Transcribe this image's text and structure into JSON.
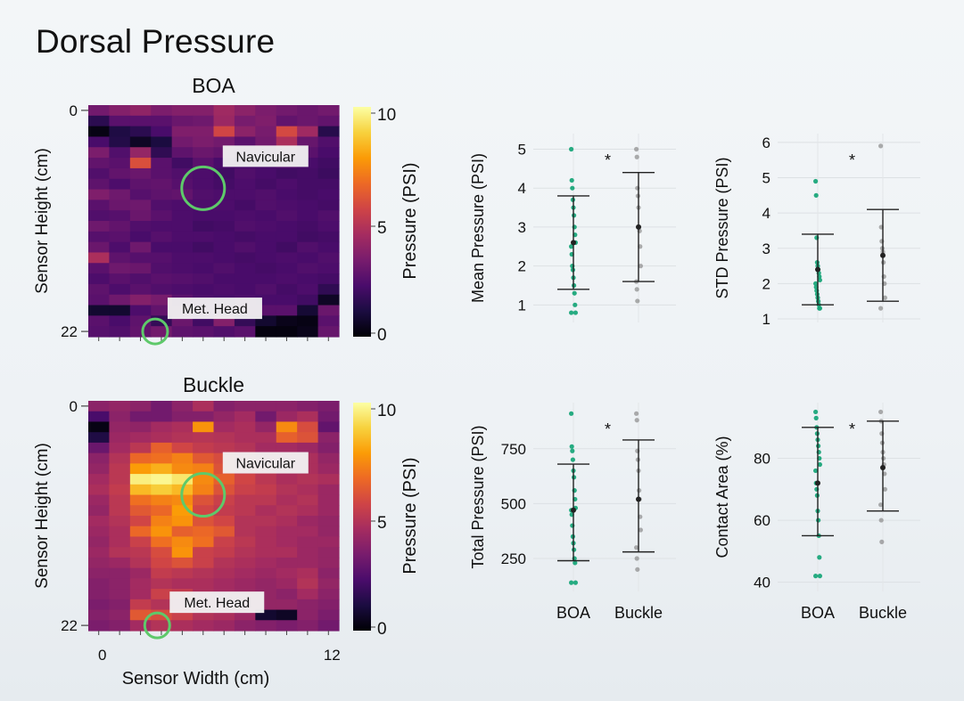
{
  "slide_title": "Dorsal Pressure",
  "colormap": [
    "#000004",
    "#1b0c41",
    "#4a0c6b",
    "#781c6d",
    "#a52c60",
    "#cf4446",
    "#ed6925",
    "#fb9b06",
    "#f7d13d",
    "#fcffa4"
  ],
  "accent_green": "#1aa77a",
  "annotation_circle_color": "#5ec96a",
  "chart_data": [
    {
      "type": "heatmap",
      "title": "BOA",
      "ylabel": "Sensor Height (cm)",
      "xlabel": "",
      "y_ticks": [
        "0",
        "22"
      ],
      "x_ticks": [],
      "colorbar": {
        "label": "Pressure (PSI)",
        "ticks": [
          "10",
          "5",
          "0"
        ],
        "range": [
          0,
          10
        ]
      },
      "annotations": [
        {
          "label": "Navicular",
          "cx": 5,
          "cy": 7.9
        },
        {
          "label": "Met. Head",
          "cx": 2.7,
          "cy": 21.5
        }
      ],
      "values": [
        [
          3.2,
          3.6,
          3.9,
          3.4,
          3.6,
          3.6,
          4.3,
          3.8,
          3.4,
          3.2,
          3.0,
          3.2
        ],
        [
          1.5,
          2.6,
          2.6,
          2.6,
          3.0,
          3.1,
          4.2,
          3.3,
          3.5,
          2.8,
          3.0,
          2.8
        ],
        [
          0.3,
          1.2,
          1.5,
          2.2,
          3.5,
          3.5,
          5.6,
          3.8,
          3.3,
          5.7,
          4.3,
          1.4
        ],
        [
          2.2,
          1.3,
          0.6,
          1.1,
          3.2,
          3.4,
          3.2,
          2.6,
          3.2,
          4.6,
          2.9,
          2.4
        ],
        [
          3.4,
          2.4,
          4.0,
          1.6,
          2.7,
          3.0,
          2.8,
          2.4,
          2.4,
          2.9,
          2.6,
          2.2
        ],
        [
          2.8,
          2.6,
          5.9,
          2.6,
          2.0,
          2.6,
          2.2,
          2.2,
          2.2,
          2.4,
          2.2,
          2.0
        ],
        [
          2.4,
          2.8,
          3.0,
          2.6,
          2.4,
          2.3,
          2.0,
          2.4,
          2.2,
          2.0,
          2.1,
          1.9
        ],
        [
          2.7,
          2.3,
          2.7,
          2.8,
          2.5,
          2.3,
          2.1,
          2.3,
          2.1,
          2.3,
          2.1,
          2.1
        ],
        [
          3.5,
          3.1,
          2.5,
          2.7,
          2.8,
          2.4,
          2.3,
          2.3,
          2.4,
          2.2,
          2.1,
          2.2
        ],
        [
          2.6,
          3.0,
          3.1,
          2.4,
          2.3,
          2.3,
          2.3,
          2.1,
          2.4,
          2.3,
          2.2,
          2.1
        ],
        [
          2.4,
          2.5,
          3.0,
          2.6,
          2.3,
          2.2,
          2.2,
          2.3,
          2.2,
          2.4,
          2.2,
          2.4
        ],
        [
          3.1,
          2.8,
          2.4,
          2.3,
          2.3,
          2.0,
          2.1,
          2.4,
          2.3,
          2.2,
          2.1,
          2.3
        ],
        [
          2.5,
          2.6,
          2.2,
          2.5,
          2.3,
          2.3,
          2.2,
          2.1,
          2.2,
          2.2,
          2.0,
          2.1
        ],
        [
          3.0,
          2.3,
          3.1,
          2.2,
          2.2,
          2.0,
          2.2,
          2.4,
          2.2,
          2.0,
          2.4,
          2.2
        ],
        [
          4.6,
          2.7,
          2.5,
          2.5,
          2.3,
          2.3,
          2.2,
          2.1,
          2.2,
          2.3,
          2.2,
          2.4
        ],
        [
          2.6,
          3.1,
          3.0,
          2.4,
          2.3,
          2.2,
          2.4,
          2.2,
          2.1,
          2.2,
          2.4,
          2.3
        ],
        [
          2.3,
          2.6,
          2.4,
          2.6,
          2.5,
          2.4,
          2.2,
          2.2,
          2.2,
          2.3,
          2.2,
          2.1
        ],
        [
          2.7,
          2.3,
          2.6,
          2.4,
          2.3,
          2.2,
          2.3,
          2.2,
          2.4,
          2.1,
          2.3,
          1.6
        ],
        [
          2.6,
          3.1,
          3.6,
          3.3,
          2.6,
          2.3,
          2.2,
          2.3,
          2.2,
          2.2,
          2.0,
          0.6
        ],
        [
          0.8,
          0.8,
          2.3,
          2.8,
          2.8,
          2.5,
          2.5,
          2.4,
          2.6,
          2.6,
          0.9,
          3.0
        ],
        [
          2.6,
          2.2,
          2.7,
          1.7,
          3.0,
          2.0,
          3.6,
          1.7,
          0.8,
          0.4,
          0.3,
          2.6
        ],
        [
          2.5,
          2.4,
          2.8,
          3.2,
          2.7,
          2.6,
          2.4,
          2.6,
          0.2,
          0.2,
          0.4,
          2.9
        ]
      ]
    },
    {
      "type": "heatmap",
      "title": "Buckle",
      "ylabel": "Sensor Height (cm)",
      "xlabel": "Sensor Width (cm)",
      "y_ticks": [
        "0",
        "22"
      ],
      "x_ticks": [
        "0",
        "12"
      ],
      "colorbar": {
        "label": "Pressure (PSI)",
        "ticks": [
          "10",
          "5",
          "0"
        ],
        "range": [
          0,
          10
        ]
      },
      "annotations": [
        {
          "label": "Navicular",
          "cx": 5,
          "cy": 9.0
        },
        {
          "label": "Met. Head",
          "cx": 2.8,
          "cy": 21.5
        }
      ],
      "values": [
        [
          3.8,
          4.0,
          3.8,
          3.2,
          3.8,
          4.6,
          3.6,
          3.8,
          3.8,
          3.8,
          3.6,
          3.4
        ],
        [
          2.2,
          3.8,
          3.2,
          3.2,
          3.6,
          3.6,
          4.0,
          4.4,
          3.2,
          4.2,
          4.6,
          3.2
        ],
        [
          0.3,
          4.0,
          3.9,
          4.4,
          4.6,
          7.6,
          4.4,
          4.6,
          4.0,
          7.4,
          5.8,
          2.8
        ],
        [
          1.2,
          4.2,
          4.4,
          4.6,
          4.8,
          4.9,
          4.8,
          4.6,
          4.6,
          6.4,
          6.0,
          3.8
        ],
        [
          3.0,
          4.4,
          5.0,
          6.4,
          5.6,
          5.2,
          5.0,
          4.8,
          4.4,
          4.4,
          4.2,
          3.6
        ],
        [
          3.8,
          4.8,
          6.6,
          6.8,
          7.2,
          6.2,
          5.8,
          5.2,
          4.8,
          4.6,
          4.6,
          4.0
        ],
        [
          4.0,
          5.0,
          7.8,
          8.2,
          7.4,
          7.2,
          6.0,
          5.2,
          5.0,
          4.6,
          4.6,
          4.2
        ],
        [
          4.4,
          5.0,
          9.6,
          9.8,
          9.4,
          7.4,
          6.4,
          5.6,
          5.0,
          4.6,
          4.8,
          4.6
        ],
        [
          4.6,
          5.2,
          8.4,
          8.8,
          8.4,
          7.2,
          6.0,
          5.4,
          5.2,
          4.8,
          4.6,
          4.2
        ],
        [
          4.2,
          5.0,
          6.8,
          7.2,
          7.4,
          6.0,
          5.4,
          5.0,
          5.0,
          4.6,
          4.8,
          4.2
        ],
        [
          4.0,
          5.0,
          6.2,
          6.6,
          7.8,
          5.6,
          5.2,
          5.0,
          4.6,
          4.8,
          4.6,
          4.2
        ],
        [
          4.4,
          4.8,
          5.6,
          7.2,
          7.6,
          6.0,
          5.6,
          4.8,
          4.8,
          4.6,
          4.2,
          4.0
        ],
        [
          4.2,
          4.6,
          6.6,
          7.6,
          6.4,
          6.6,
          6.2,
          4.8,
          4.6,
          4.4,
          4.4,
          4.0
        ],
        [
          4.0,
          4.6,
          5.4,
          6.8,
          7.4,
          6.8,
          5.4,
          5.0,
          4.6,
          4.4,
          4.2,
          4.2
        ],
        [
          4.2,
          4.8,
          5.0,
          5.8,
          7.6,
          5.4,
          5.2,
          4.8,
          4.6,
          4.6,
          4.2,
          4.0
        ],
        [
          4.0,
          4.2,
          4.8,
          5.6,
          6.0,
          5.4,
          4.8,
          4.6,
          4.4,
          4.2,
          4.2,
          4.0
        ],
        [
          3.8,
          3.8,
          4.2,
          5.2,
          5.0,
          4.8,
          4.6,
          4.4,
          4.2,
          4.4,
          4.6,
          3.8
        ],
        [
          3.6,
          3.8,
          4.4,
          4.8,
          4.6,
          4.6,
          4.4,
          4.2,
          4.0,
          4.2,
          4.8,
          4.0
        ],
        [
          3.6,
          3.8,
          4.4,
          5.4,
          5.2,
          4.6,
          4.4,
          4.2,
          4.0,
          3.8,
          4.4,
          3.8
        ],
        [
          3.4,
          3.6,
          5.2,
          4.8,
          4.6,
          4.4,
          4.2,
          4.2,
          4.0,
          4.0,
          3.8,
          3.6
        ],
        [
          3.6,
          3.8,
          6.2,
          5.8,
          5.4,
          4.8,
          4.6,
          4.2,
          0.8,
          0.6,
          3.8,
          3.4
        ],
        [
          3.4,
          3.6,
          4.4,
          4.8,
          4.6,
          4.4,
          4.2,
          3.8,
          3.6,
          3.4,
          3.6,
          3.2
        ]
      ]
    },
    {
      "type": "scatter",
      "ylabel": "Mean Pressure (PSI)",
      "y_ticks": [
        1,
        2,
        3,
        4,
        5
      ],
      "ylim": [
        0.55,
        5.4
      ],
      "categories": [
        "BOA",
        "Buckle"
      ],
      "significance": "*",
      "groups": [
        {
          "name": "BOA",
          "color": "#1aa77a",
          "mean": 2.6,
          "lower": 1.4,
          "upper": 3.8,
          "points": [
            5.0,
            4.2,
            4.0,
            3.7,
            3.5,
            3.3,
            3.0,
            2.8,
            2.6,
            2.5,
            2.3,
            2.0,
            1.9,
            1.7,
            1.5,
            1.3,
            1.0,
            0.8,
            0.8
          ]
        },
        {
          "name": "Buckle",
          "color": "#8a8a8a",
          "mean": 3.0,
          "lower": 1.6,
          "upper": 4.4,
          "points": [
            5.0,
            4.8,
            4.0,
            3.8,
            3.5,
            3.0,
            2.9,
            2.5,
            2.0,
            1.6,
            1.4,
            1.1
          ]
        }
      ]
    },
    {
      "type": "scatter",
      "ylabel": "STD Pressure (PSI)",
      "y_ticks": [
        1,
        2,
        3,
        4,
        5,
        6
      ],
      "ylim": [
        0.9,
        6.25
      ],
      "categories": [
        "BOA",
        "Buckle"
      ],
      "significance": "*",
      "groups": [
        {
          "name": "BOA",
          "color": "#1aa77a",
          "mean": 2.4,
          "lower": 1.4,
          "upper": 3.4,
          "points": [
            4.9,
            4.5,
            3.3,
            2.6,
            2.5,
            2.4,
            2.3,
            2.2,
            2.1,
            2.0,
            1.9,
            1.8,
            1.7,
            1.6,
            1.5,
            1.4,
            1.3,
            1.3
          ]
        },
        {
          "name": "Buckle",
          "color": "#8a8a8a",
          "mean": 2.8,
          "lower": 1.5,
          "upper": 4.1,
          "points": [
            5.9,
            3.6,
            3.2,
            3.0,
            2.9,
            2.6,
            2.2,
            2.0,
            1.6,
            1.3
          ]
        }
      ]
    },
    {
      "type": "scatter",
      "ylabel": "Total Pressure (PSI)",
      "y_ticks": [
        250,
        500,
        750
      ],
      "ylim": [
        100,
        960
      ],
      "categories": [
        "BOA",
        "Buckle"
      ],
      "significance": "*",
      "groups": [
        {
          "name": "BOA",
          "color": "#1aa77a",
          "mean": 470,
          "lower": 240,
          "upper": 680,
          "points": [
            910,
            760,
            740,
            700,
            650,
            620,
            560,
            520,
            480,
            470,
            450,
            400,
            350,
            320,
            290,
            250,
            230,
            140,
            140
          ]
        },
        {
          "name": "Buckle",
          "color": "#8a8a8a",
          "mean": 520,
          "lower": 280,
          "upper": 790,
          "points": [
            910,
            880,
            740,
            700,
            650,
            560,
            520,
            440,
            380,
            300,
            250,
            200
          ]
        }
      ]
    },
    {
      "type": "scatter",
      "ylabel": "Contact Area (%)",
      "y_ticks": [
        40,
        60,
        80
      ],
      "ylim": [
        37,
        98
      ],
      "categories": [
        "BOA",
        "Buckle"
      ],
      "significance": "*",
      "groups": [
        {
          "name": "BOA",
          "color": "#1aa77a",
          "mean": 72,
          "lower": 55,
          "upper": 90,
          "points": [
            95,
            93,
            90,
            88,
            86,
            84,
            82,
            80,
            78,
            76,
            72,
            70,
            68,
            63,
            60,
            55,
            48,
            42,
            42
          ]
        },
        {
          "name": "Buckle",
          "color": "#8a8a8a",
          "mean": 77,
          "lower": 63,
          "upper": 92,
          "points": [
            95,
            92,
            88,
            85,
            82,
            80,
            78,
            75,
            70,
            65,
            60,
            53
          ]
        }
      ]
    }
  ]
}
